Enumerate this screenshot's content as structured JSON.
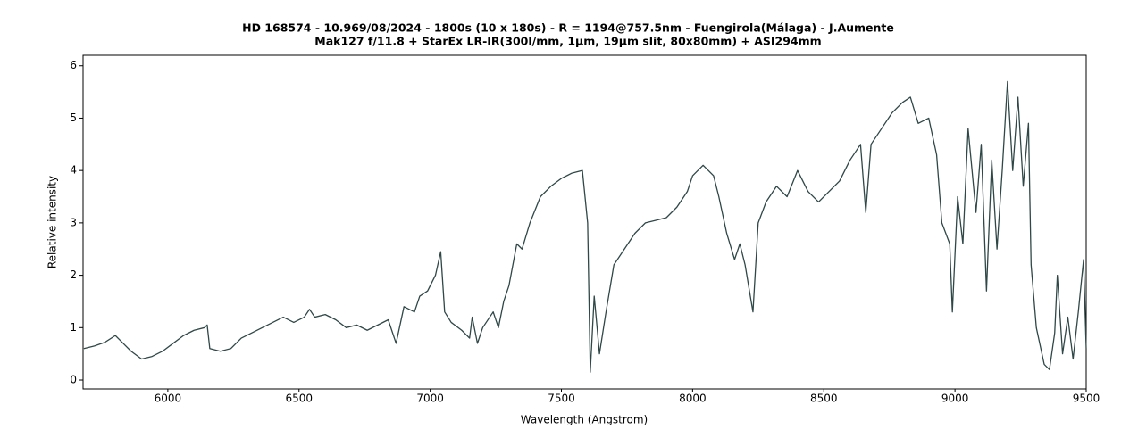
{
  "chart_data": {
    "type": "line",
    "title": "HD 168574 - 10.969/08/2024 - 1800s (10 x 180s) - R = 1194@757.5nm - Fuengirola(Málaga) - J.Aumente",
    "subtitle": "Mak127 f/11.8 + StarEx LR-IR(300l/mm, 1µm, 19µm slit, 80x80mm) + ASI294mm",
    "xlabel": "Wavelength (Angstrom)",
    "ylabel": "Relative intensity",
    "color": "#2f4747",
    "x": [
      5680,
      5720,
      5760,
      5800,
      5830,
      5860,
      5900,
      5940,
      5980,
      6020,
      6060,
      6100,
      6140,
      6150,
      6160,
      6200,
      6240,
      6280,
      6320,
      6360,
      6400,
      6440,
      6480,
      6520,
      6540,
      6560,
      6600,
      6640,
      6680,
      6720,
      6760,
      6800,
      6840,
      6870,
      6900,
      6940,
      6960,
      6990,
      7020,
      7040,
      7055,
      7080,
      7120,
      7150,
      7160,
      7180,
      7200,
      7240,
      7260,
      7280,
      7300,
      7330,
      7350,
      7380,
      7420,
      7460,
      7500,
      7540,
      7580,
      7600,
      7610,
      7625,
      7645,
      7670,
      7700,
      7740,
      7780,
      7820,
      7860,
      7900,
      7940,
      7980,
      8000,
      8040,
      8080,
      8100,
      8130,
      8160,
      8180,
      8200,
      8230,
      8250,
      8280,
      8320,
      8360,
      8400,
      8440,
      8480,
      8520,
      8560,
      8600,
      8640,
      8660,
      8680,
      8720,
      8760,
      8800,
      8830,
      8860,
      8900,
      8930,
      8950,
      8980,
      8990,
      9010,
      9030,
      9050,
      9080,
      9100,
      9120,
      9140,
      9160,
      9180,
      9200,
      9220,
      9240,
      9260,
      9280,
      9290,
      9310,
      9340,
      9360,
      9380,
      9390,
      9410,
      9430,
      9450,
      9470,
      9490,
      9500
    ],
    "values": [
      0.6,
      0.65,
      0.72,
      0.85,
      0.7,
      0.55,
      0.4,
      0.45,
      0.55,
      0.7,
      0.85,
      0.95,
      1.0,
      1.05,
      0.6,
      0.55,
      0.6,
      0.8,
      0.9,
      1.0,
      1.1,
      1.2,
      1.1,
      1.2,
      1.35,
      1.2,
      1.25,
      1.15,
      1.0,
      1.05,
      0.95,
      1.05,
      1.15,
      0.7,
      1.4,
      1.3,
      1.6,
      1.7,
      2.0,
      2.45,
      1.3,
      1.1,
      0.95,
      0.8,
      1.2,
      0.7,
      1.0,
      1.3,
      1.0,
      1.5,
      1.8,
      2.6,
      2.5,
      3.0,
      3.5,
      3.7,
      3.85,
      3.95,
      4.0,
      3.0,
      0.15,
      1.6,
      0.5,
      1.3,
      2.2,
      2.5,
      2.8,
      3.0,
      3.05,
      3.1,
      3.3,
      3.6,
      3.9,
      4.1,
      3.9,
      3.5,
      2.8,
      2.3,
      2.6,
      2.2,
      1.3,
      3.0,
      3.4,
      3.7,
      3.5,
      4.0,
      3.6,
      3.4,
      3.6,
      3.8,
      4.2,
      4.5,
      3.2,
      4.5,
      4.8,
      5.1,
      5.3,
      5.4,
      4.9,
      5.0,
      4.3,
      3.0,
      2.6,
      1.3,
      3.5,
      2.6,
      4.8,
      3.2,
      4.5,
      1.7,
      4.2,
      2.5,
      4.0,
      5.7,
      4.0,
      5.4,
      3.7,
      4.9,
      2.2,
      1.0,
      0.3,
      0.2,
      0.9,
      2.0,
      0.5,
      1.2,
      0.4,
      1.3,
      2.3,
      0.6
    ],
    "xlim": [
      5677,
      9500
    ],
    "ylim": [
      -0.17,
      6.2
    ],
    "xticks": [
      6000,
      6500,
      7000,
      7500,
      8000,
      8500,
      9000,
      9500
    ],
    "yticks": [
      0,
      1,
      2,
      3,
      4,
      5,
      6
    ]
  }
}
